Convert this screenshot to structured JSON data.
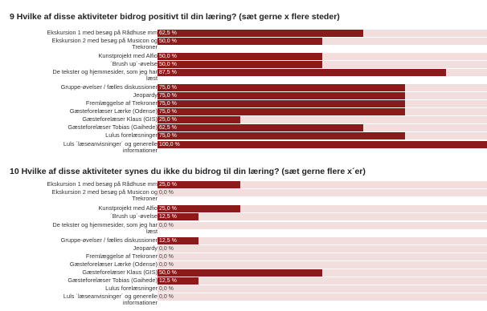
{
  "chart_data": [
    {
      "type": "bar",
      "title": "9 Hvilke af disse aktiviteter bidrog positivt til din læring? (sæt gerne x flere steder)",
      "xlim": [
        0,
        100
      ],
      "categories": [
        [
          "Ekskursion 1 med besøg på Rådhuse mm"
        ],
        [
          "Ekskursion 2 med besøg på Musicon og",
          "Trekroner"
        ],
        [
          "Kunstprojekt med Alfio"
        ],
        [
          "´Brush up´-øvelse"
        ],
        [
          "De tekster og hjemmesider, som jeg har",
          "læst"
        ],
        [
          "Gruppe-øvelser / fælles diskussioner"
        ],
        [
          "Jeopardy"
        ],
        [
          "Fremlæggelse af Trekroner"
        ],
        [
          "Gæsteforelæser Lærke (Odense)"
        ],
        [
          "Gæsteforelæser Klaus (GIS)"
        ],
        [
          "Gæsteforelæser Tobias (Gaihede)"
        ],
        [
          "Lulus forelæsninger"
        ],
        [
          "Luls ´læseanvisninger´ og generelle",
          "informationer"
        ]
      ],
      "values": [
        62.5,
        50.0,
        50.0,
        50.0,
        87.5,
        75.0,
        75.0,
        75.0,
        75.0,
        25.0,
        62.5,
        75.0,
        100.0
      ],
      "value_labels": [
        "62,5 %",
        "50,0 %",
        "50,0 %",
        "50,0 %",
        "87,5 %",
        "75,0 %",
        "75,0 %",
        "75,0 %",
        "75,0 %",
        "25,0 %",
        "62,5 %",
        "75,0 %",
        "100,0 %"
      ]
    },
    {
      "type": "bar",
      "title": "10 Hvilke af disse aktiviteter synes du ikke du bidrog til din læring? (sæt gerne flere x´er)",
      "xlim": [
        0,
        100
      ],
      "categories": [
        [
          "Ekskursion 1 med besøg på Rådhuse mm"
        ],
        [
          "Ekskursion 2 med besøg på Musicon og",
          "Trekroner"
        ],
        [
          "Kunstprojekt med Alfio"
        ],
        [
          "´Brush up´-øvelse"
        ],
        [
          "De tekster og hjemmesider, som jeg har",
          "læst"
        ],
        [
          "Gruppe-øvelser / fælles diskussioner"
        ],
        [
          "Jeopardy"
        ],
        [
          "Fremlæggelse af Trekroner"
        ],
        [
          "Gæsteforelæser Lærke (Odense)"
        ],
        [
          "Gæsteforelæser Klaus (GIS)"
        ],
        [
          "Gæsteforelæser Tobias (Gaihede)"
        ],
        [
          "Lulus forelæsninger"
        ],
        [
          "Luls ´læseanvisninger´ og generelle",
          "informationer"
        ]
      ],
      "values": [
        25.0,
        0.0,
        25.0,
        12.5,
        0.0,
        12.5,
        0.0,
        0.0,
        0.0,
        50.0,
        12.5,
        0.0,
        0.0
      ],
      "value_labels": [
        "25,0 %",
        "0,0 %",
        "25,0 %",
        "12,5 %",
        "0,0 %",
        "12,5 %",
        "0,0 %",
        "0,0 %",
        "0,0 %",
        "50,0 %",
        "12,5 %",
        "0,0 %",
        "0,0 %"
      ]
    }
  ],
  "colors": {
    "bar": "#8b1a1a",
    "track": "#f1dedd"
  }
}
